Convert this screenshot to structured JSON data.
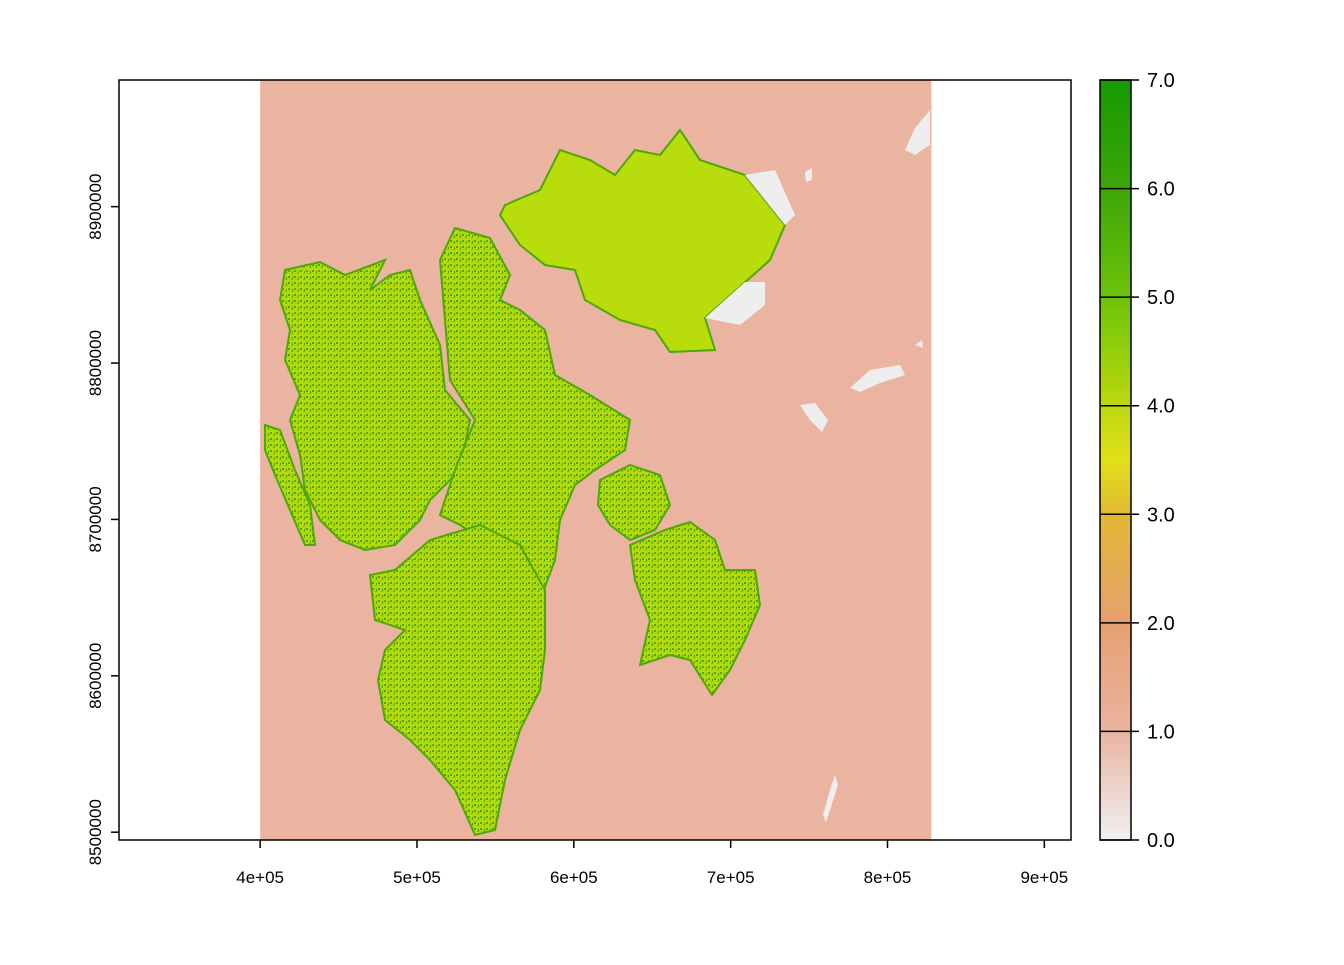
{
  "map": {
    "x_axis": {
      "ticks": [
        {
          "value": 400000,
          "label": "4e+05"
        },
        {
          "value": 500000,
          "label": "5e+05"
        },
        {
          "value": 600000,
          "label": "6e+05"
        },
        {
          "value": 700000,
          "label": "7e+05"
        },
        {
          "value": 800000,
          "label": "8e+05"
        },
        {
          "value": 900000,
          "label": "9e+05"
        }
      ],
      "range": [
        310000,
        917000
      ]
    },
    "y_axis": {
      "ticks": [
        {
          "value": 8500000,
          "label": "8500000"
        },
        {
          "value": 8600000,
          "label": "8600000"
        },
        {
          "value": 8700000,
          "label": "8700000"
        },
        {
          "value": 8800000,
          "label": "8800000"
        },
        {
          "value": 8900000,
          "label": "8900000"
        }
      ],
      "range": [
        8495000,
        8981000
      ]
    },
    "raster_extent": {
      "xmin": 400000,
      "xmax": 828000,
      "ymin": 8495000,
      "ymax": 8981000
    },
    "background_value": 1.0,
    "legend": {
      "range": [
        0,
        7
      ],
      "ticks": [
        {
          "value": 0,
          "label": "0.0"
        },
        {
          "value": 1,
          "label": "1.0"
        },
        {
          "value": 2,
          "label": "2.0"
        },
        {
          "value": 3,
          "label": "3.0"
        },
        {
          "value": 4,
          "label": "4.0"
        },
        {
          "value": 5,
          "label": "5.0"
        },
        {
          "value": 6,
          "label": "6.0"
        },
        {
          "value": 7,
          "label": "7.0"
        }
      ]
    },
    "colors": {
      "value_0": "#f0f0f0",
      "value_1": "#eab4a0",
      "value_2": "#e6a070",
      "value_3": "#e3b833",
      "value_3_5": "#e1e01a",
      "value_4": "#bcd80f",
      "value_5": "#6dc30a",
      "value_6": "#3da608",
      "value_7": "#169a00",
      "land_main": "#b5d80d",
      "land_dark": "#4ea80c",
      "glacier_flat": "#b8dc0c",
      "ice_white": "#eeeeee"
    }
  }
}
